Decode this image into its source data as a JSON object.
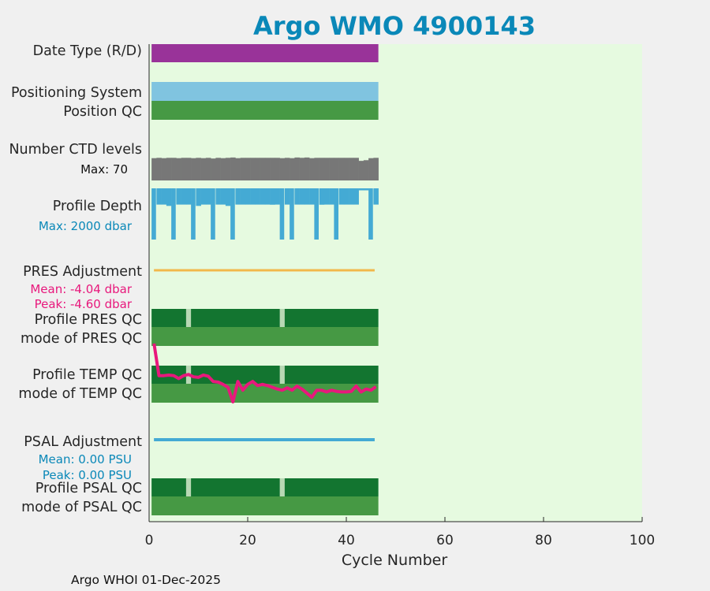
{
  "colors": {
    "background": "#f0f0f0",
    "plot_area": "#e6fae0",
    "title": "#0a88b8",
    "date_type": "#993399",
    "positioning": "#80c4e0",
    "qc_dark": "#137530",
    "qc_light": "#469944",
    "qc_gap": "#b8d8b4",
    "ctd_levels": "#777777",
    "profile_depth": "#44aad4",
    "pres_adj": "#f2b84b",
    "psal_adj": "#44aad4",
    "temp_line": "#e8187c",
    "pres_text": "#e8187c",
    "psal_text": "#0a88b8",
    "depth_text": "#0a88b8"
  },
  "chart_data": {
    "type": "bar",
    "title": "Argo WMO 4900143",
    "xlabel": "Cycle Number",
    "xlim": [
      0,
      100
    ],
    "xticks": [
      "0",
      "20",
      "40",
      "60",
      "80",
      "100"
    ],
    "cycles": {
      "first": 1,
      "last": 46
    },
    "rows": {
      "date_type": "Date Type (R/D)",
      "positioning": "Positioning System",
      "position_qc": "Position QC",
      "ctd_levels": "Number CTD levels",
      "profile_depth": "Profile Depth",
      "pres_adj": "PRES Adjustment",
      "profile_pres_qc": "Profile PRES QC",
      "mode_pres_qc": "mode of PRES QC",
      "profile_temp_qc": "Profile TEMP QC",
      "mode_temp_qc": "mode of TEMP QC",
      "psal_adj": "PSAL Adjustment",
      "profile_psal_qc": "Profile PSAL QC",
      "mode_psal_qc": "mode of PSAL QC"
    },
    "ctd_max_label": "Max: 70",
    "depth_max_label": "Max: 2000 dbar",
    "pres_mean_label": "Mean: -4.04 dbar",
    "pres_peak_label": "Peak: -4.60 dbar",
    "psal_mean_label": "Mean: 0.00 PSU",
    "psal_peak_label": "Peak: 0.00 PSU",
    "ctd_levels_max": 70,
    "ctd_levels": [
      66,
      67,
      66,
      67,
      67,
      66,
      67,
      67,
      66,
      67,
      66,
      67,
      65,
      67,
      66,
      67,
      68,
      66,
      67,
      67,
      67,
      67,
      67,
      67,
      67,
      67,
      66,
      67,
      66,
      68,
      67,
      68,
      66,
      67,
      67,
      67,
      67,
      67,
      67,
      67,
      67,
      67,
      58,
      60,
      66,
      67
    ],
    "profile_depth_max": 2000,
    "profile_depth": [
      1230,
      1220,
      1220,
      1320,
      1220,
      1220,
      1220,
      1220,
      1220,
      1320,
      1220,
      1220,
      1220,
      1220,
      1220,
      1320,
      1220,
      1220,
      1220,
      1220,
      1220,
      1220,
      1220,
      1220,
      1230,
      1220,
      1280,
      1220,
      1220,
      1220,
      1220,
      1220,
      1220,
      1220,
      1230,
      1220,
      1220,
      1220,
      1220,
      1220,
      1220,
      1220,
      150,
      150,
      1230,
      1220
    ],
    "profile_depth_deep_cycles": [
      1,
      5,
      9,
      13,
      17,
      27,
      29,
      34,
      38,
      45
    ],
    "profile_depth_deep_value": 2000,
    "profile_qc_gap_cycles": [
      8,
      27
    ],
    "temp_adjustment": [
      1.0,
      0.45,
      0.45,
      0.46,
      0.45,
      0.4,
      0.45,
      0.47,
      0.43,
      0.42,
      0.46,
      0.44,
      0.35,
      0.34,
      0.3,
      0.25,
      0.0,
      0.35,
      0.2,
      0.3,
      0.35,
      0.28,
      0.3,
      0.28,
      0.25,
      0.22,
      0.2,
      0.24,
      0.2,
      0.27,
      0.22,
      0.15,
      0.08,
      0.2,
      0.2,
      0.17,
      0.2,
      0.18,
      0.17,
      0.17,
      0.18,
      0.27,
      0.17,
      0.22,
      0.2,
      0.26
    ],
    "pres_adjustment_label_mean": -4.04,
    "psal_adjustment_label_mean": 0.0
  },
  "footer": "Argo WHOI 01-Dec-2025"
}
